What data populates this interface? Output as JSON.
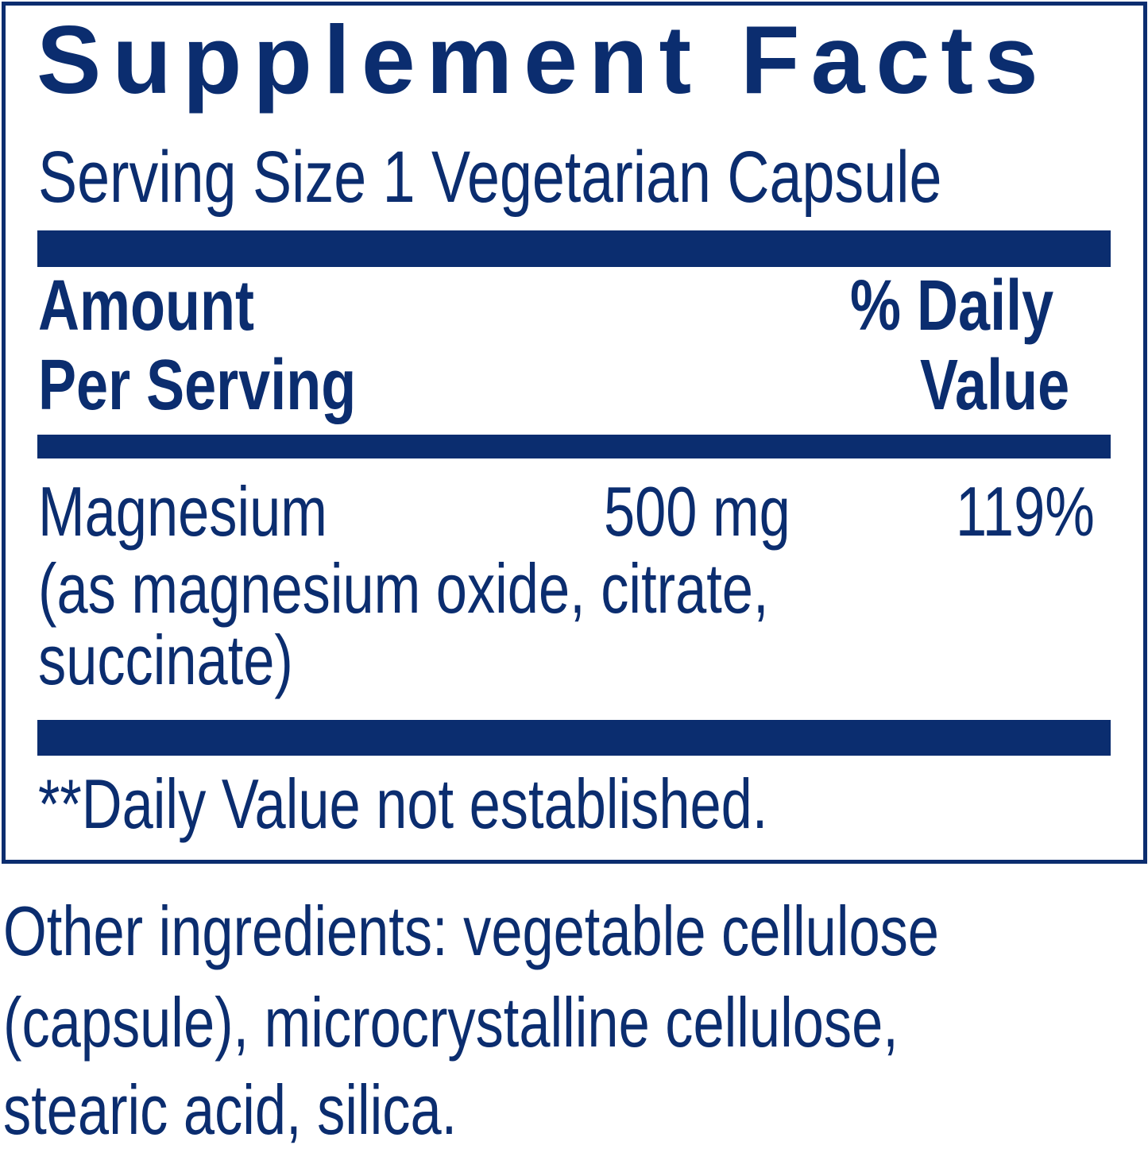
{
  "label": {
    "title": "Supplement Facts",
    "serving_size": "Serving Size 1 Vegetarian Capsule",
    "header": {
      "amount_line1": "Amount",
      "amount_line2": "Per Serving",
      "dv_line1": "% Daily",
      "dv_line2": "Value"
    },
    "nutrients": [
      {
        "name": "Magnesium",
        "source_line1": "(as magnesium oxide, citrate,",
        "source_line2": "succinate)",
        "amount": "500 mg",
        "daily_value": "119%"
      }
    ],
    "footnote": "**Daily Value not established."
  },
  "other_ingredients": {
    "line1": "Other ingredients: vegetable cellulose",
    "line2": "(capsule), microcrystalline cellulose,",
    "line3": "stearic acid, silica."
  },
  "colors": {
    "ink": "#0b2d6f",
    "background": "#ffffff"
  }
}
